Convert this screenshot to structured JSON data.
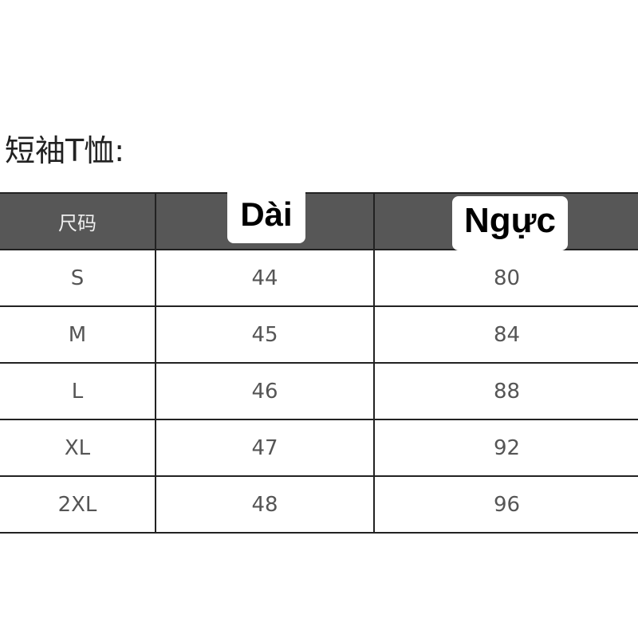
{
  "title": "短袖T恤:",
  "headers": {
    "size": "尺码",
    "length": "Dài",
    "chest": "Ngực"
  },
  "rows": [
    [
      "S",
      "44",
      "80"
    ],
    [
      "M",
      "45",
      "84"
    ],
    [
      "L",
      "46",
      "88"
    ],
    [
      "XL",
      "47",
      "92"
    ],
    [
      "2XL",
      "48",
      "96"
    ]
  ]
}
